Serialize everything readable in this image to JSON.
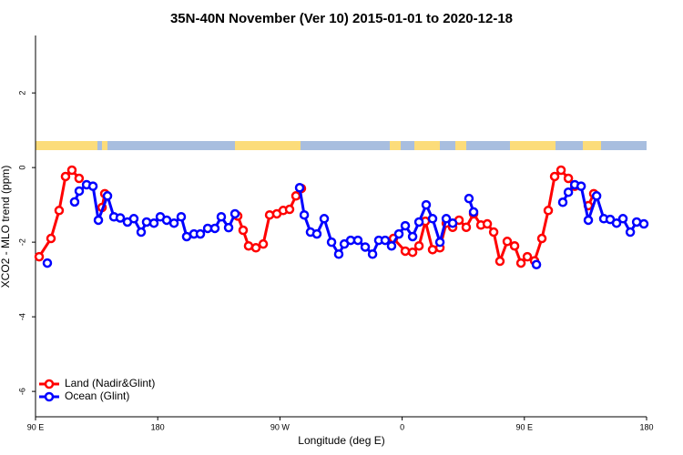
{
  "chart_data": {
    "type": "line",
    "title": "35N-40N November (Ver 10)   2015-01-01 to 2020-12-18",
    "x_label": "Longitude (deg E)",
    "y_label": "XCO2 - MLO trend (ppm)",
    "xlim": [
      90,
      540
    ],
    "xticks": [
      {
        "value": 90,
        "label": "90 E"
      },
      180,
      {
        "value": 270,
        "label": "90 W"
      },
      {
        "value": 360,
        "label": "0"
      },
      {
        "value": 450,
        "label": "90 E"
      },
      {
        "value": 540,
        "label": "180"
      }
    ],
    "ylim": [
      -6.68,
      3.54
    ],
    "yticks": [
      -6,
      -4,
      -2,
      0,
      2
    ],
    "legend": "bottomleft",
    "series": [
      {
        "name": "Land (Nadir&Glint)",
        "color": "#ff0000",
        "x": [
          92.7,
          101.4,
          107.4,
          112.1,
          116.8,
          122.1,
          null,
          139,
          141,
          null,
          238.9,
          242.9,
          246.9,
          252.3,
          257.7,
          262.4,
          267.7,
          272.4,
          277.1,
          281.8,
          285.8,
          null,
          353.6,
          362.3,
          367.7,
          372.4,
          377.1,
          382.4,
          387.8,
          392.5,
          397.2,
          401.9,
          407.2,
          412.6,
          418,
          422.7,
          427.4,
          432,
          437.4,
          442.8,
          447.5,
          452.2,
          457.5,
          462.9,
          467.6,
          472.3,
          477,
          482.4,
          487.1,
          null,
          497.1,
          501.1
        ],
        "values": [
          -2.39,
          -1.9,
          -1.15,
          -0.24,
          -0.07,
          -0.29,
          null,
          -1.07,
          -0.7,
          null,
          -1.3,
          -1.68,
          -2.1,
          -2.15,
          -2.05,
          -1.27,
          -1.24,
          -1.15,
          -1.12,
          -0.76,
          -0.56,
          null,
          -1.9,
          -2.24,
          -2.27,
          -2.1,
          -1.44,
          -2.2,
          -2.15,
          -1.49,
          -1.6,
          -1.41,
          -1.6,
          -1.24,
          -1.54,
          -1.51,
          -1.73,
          -2.51,
          -1.98,
          -2.1,
          -2.56,
          -2.39,
          -2.5,
          -1.9,
          -1.15,
          -0.24,
          -0.07,
          -0.29,
          -0.5,
          null,
          -1.02,
          -0.7
        ]
      },
      {
        "name": "Ocean (Glint)",
        "color": "#0000ff",
        "x": [
          98.7,
          null,
          118.8,
          122.2,
          127.6,
          132.3,
          136.3,
          143,
          147.7,
          152.4,
          157.7,
          162.4,
          167.8,
          171.8,
          177.2,
          181.9,
          186.6,
          192,
          197.3,
          201.3,
          206.7,
          211.4,
          216.8,
          222.1,
          226.8,
          232.2,
          236.9,
          null,
          284.5,
          287.9,
          292.5,
          297.2,
          302.6,
          308,
          313.3,
          317.4,
          322.1,
          327.4,
          332.8,
          338.2,
          342.8,
          347.5,
          352.2,
          357.6,
          362.3,
          367.7,
          372.4,
          377.7,
          382.4,
          387.8,
          392.5,
          397.2,
          null,
          409.2,
          412.6,
          null,
          458.9,
          null,
          478.3,
          482.4,
          487.1,
          491.8,
          497.1,
          503.2,
          508.5,
          513.2,
          517.9,
          522.6,
          528,
          532.7,
          538
        ],
        "values": [
          -2.56,
          null,
          -0.92,
          -0.63,
          -0.46,
          -0.5,
          -1.41,
          -0.76,
          -1.32,
          -1.35,
          -1.46,
          -1.37,
          -1.73,
          -1.46,
          -1.49,
          -1.32,
          -1.41,
          -1.49,
          -1.32,
          -1.85,
          -1.78,
          -1.78,
          -1.63,
          -1.63,
          -1.32,
          -1.61,
          -1.24,
          null,
          -0.54,
          -1.27,
          -1.73,
          -1.78,
          -1.37,
          -2.0,
          -2.32,
          -2.05,
          -1.95,
          -1.95,
          -2.13,
          -2.32,
          -1.95,
          -1.95,
          -2.1,
          -1.78,
          -1.56,
          -1.85,
          -1.46,
          -1.0,
          -1.37,
          -2.0,
          -1.37,
          -1.49,
          null,
          -0.83,
          -1.19,
          null,
          -2.6,
          null,
          -0.93,
          -0.66,
          -0.46,
          -0.5,
          -1.41,
          -0.76,
          -1.37,
          -1.39,
          -1.49,
          -1.37,
          -1.73,
          -1.46,
          -1.51
        ]
      }
    ]
  }
}
